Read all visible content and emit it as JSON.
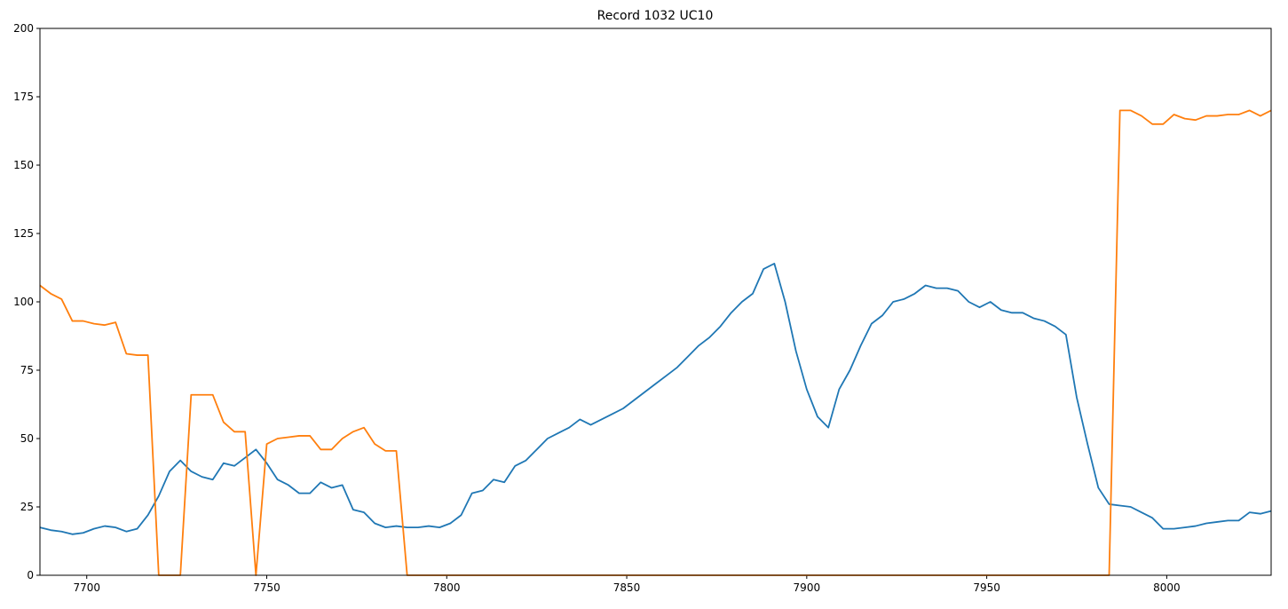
{
  "chart_data": {
    "type": "line",
    "title": "Record 1032 UC10",
    "x": [
      7687,
      7690,
      7693,
      7696,
      7699,
      7702,
      7705,
      7708,
      7711,
      7714,
      7717,
      7720,
      7723,
      7726,
      7729,
      7732,
      7735,
      7738,
      7741,
      7744,
      7747,
      7750,
      7753,
      7756,
      7759,
      7762,
      7765,
      7768,
      7771,
      7774,
      7777,
      7780,
      7783,
      7786,
      7789,
      7792,
      7795,
      7798,
      7801,
      7804,
      7807,
      7810,
      7813,
      7816,
      7819,
      7822,
      7825,
      7828,
      7831,
      7834,
      7837,
      7840,
      7843,
      7846,
      7849,
      7852,
      7855,
      7858,
      7861,
      7864,
      7867,
      7870,
      7873,
      7876,
      7879,
      7882,
      7885,
      7888,
      7891,
      7894,
      7897,
      7900,
      7903,
      7906,
      7909,
      7912,
      7915,
      7918,
      7921,
      7924,
      7927,
      7930,
      7933,
      7936,
      7939,
      7942,
      7945,
      7948,
      7951,
      7954,
      7957,
      7960,
      7963,
      7966,
      7969,
      7972,
      7975,
      7978,
      7981,
      7984,
      7987,
      7990,
      7993,
      7996,
      7999,
      8002,
      8005,
      8008,
      8011,
      8014,
      8017,
      8020,
      8023,
      8026,
      8029
    ],
    "series": [
      {
        "color": "#1f77b4",
        "values": [
          17.5,
          16.5,
          16,
          15,
          15.5,
          17,
          18,
          17.5,
          16,
          17,
          22,
          29,
          38,
          42,
          38,
          36,
          35,
          41,
          40,
          43,
          46,
          41,
          35,
          33,
          30,
          30,
          34,
          32,
          33,
          24,
          23,
          19,
          17.5,
          18,
          17.5,
          17.5,
          18,
          17.5,
          19,
          22,
          30,
          31,
          35,
          34,
          40,
          42,
          46,
          50,
          52,
          54,
          57,
          55,
          57,
          59,
          61,
          64,
          67,
          70,
          73,
          76,
          80,
          84,
          87,
          91,
          96,
          100,
          103,
          112,
          114,
          100,
          82,
          68,
          58,
          54,
          68,
          75,
          84,
          92,
          95,
          100,
          101,
          103,
          106,
          105,
          105,
          104,
          100,
          98,
          100,
          97,
          96,
          96,
          94,
          93,
          91,
          88,
          65,
          48,
          32,
          26,
          25.5,
          25,
          23,
          21,
          17,
          17,
          17.5,
          18,
          19,
          19.5,
          20,
          20,
          23,
          22.5,
          23.5
        ]
      },
      {
        "color": "#ff7f0e",
        "values": [
          106,
          103,
          101,
          93,
          93,
          92,
          91.5,
          92.5,
          81,
          80.5,
          80.5,
          0,
          0,
          0,
          66,
          66,
          66,
          56,
          52.5,
          52.5,
          0,
          48,
          50,
          50.5,
          51,
          51,
          46,
          46,
          50,
          52.5,
          54,
          48,
          45.5,
          45.5,
          0,
          0,
          0,
          0,
          0,
          0,
          0,
          0,
          0,
          0,
          0,
          0,
          0,
          0,
          0,
          0,
          0,
          0,
          0,
          0,
          0,
          0,
          0,
          0,
          0,
          0,
          0,
          0,
          0,
          0,
          0,
          0,
          0,
          0,
          0,
          0,
          0,
          0,
          0,
          0,
          0,
          0,
          0,
          0,
          0,
          0,
          0,
          0,
          0,
          0,
          0,
          0,
          0,
          0,
          0,
          0,
          0,
          0,
          0,
          0,
          0,
          0,
          0,
          0,
          0,
          0,
          170,
          170,
          168,
          165,
          165,
          168.5,
          167,
          166.5,
          168,
          168,
          168.5,
          168.5,
          170,
          168,
          170
        ]
      }
    ],
    "xlim": [
      7687,
      8029
    ],
    "ylim": [
      0,
      200
    ],
    "xticks": [
      7700,
      7750,
      7800,
      7850,
      7900,
      7950,
      8000
    ],
    "yticks": [
      0,
      25,
      50,
      75,
      100,
      125,
      150,
      175,
      200
    ]
  }
}
